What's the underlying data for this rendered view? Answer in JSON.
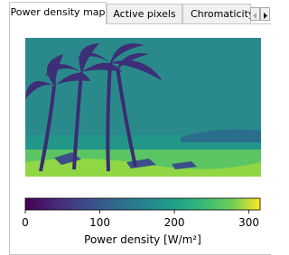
{
  "tabs": [
    "Power density map",
    "Active pixels",
    "Chromaticity"
  ],
  "colorbar": {
    "label": "Power density [W/m²]",
    "lim": [
      0,
      315
    ],
    "ticks": [
      0,
      100,
      200,
      300
    ]
  }
}
